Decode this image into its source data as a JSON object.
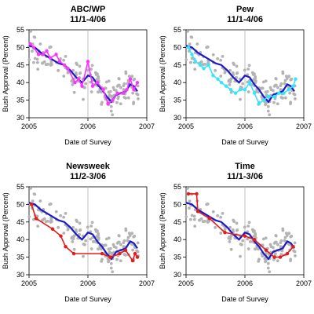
{
  "colors": {
    "scatter": "#b3b3b3",
    "trend": "#1a1acc",
    "vline": "#bfbfbf",
    "abc": "#ff33ff",
    "pew": "#33e6ff",
    "newsweek": "#e61a1a",
    "time": "#e61a1a"
  },
  "chart_data": [
    {
      "type": "line",
      "title": "ABC/WP",
      "subtitle": "11/1-4/06",
      "xlabel": "Date of Survey",
      "ylabel": "Bush Approval (Percent)",
      "xlim": [
        2005,
        2007
      ],
      "ylim": [
        30,
        55
      ],
      "xticks": [
        "2005",
        "2006",
        "2007"
      ],
      "yticks": [
        "30",
        "35",
        "40",
        "45",
        "50",
        "55"
      ],
      "grid": false,
      "reference_line_x": 2006,
      "series": [
        {
          "role": "poll",
          "color_key": "abc",
          "x": [
            2005.02,
            2005.08,
            2005.16,
            2005.24,
            2005.3,
            2005.36,
            2005.46,
            2005.52,
            2005.6,
            2005.66,
            2005.78,
            2005.84,
            2005.9,
            2006.0,
            2006.08,
            2006.16,
            2006.26,
            2006.34,
            2006.42,
            2006.5,
            2006.6,
            2006.66,
            2006.72,
            2006.78,
            2006.84
          ],
          "y": [
            51,
            50,
            48,
            48,
            49,
            47,
            48,
            46,
            45,
            44,
            40,
            41,
            39,
            46,
            39,
            40,
            38,
            34,
            35,
            37,
            37,
            38,
            41,
            38,
            40
          ]
        },
        {
          "role": "trend",
          "color_key": "trend",
          "x": [
            2005.0,
            2005.1,
            2005.2,
            2005.3,
            2005.4,
            2005.5,
            2005.6,
            2005.7,
            2005.8,
            2005.9,
            2006.0,
            2006.08,
            2006.16,
            2006.24,
            2006.32,
            2006.4,
            2006.48,
            2006.56,
            2006.64,
            2006.72,
            2006.78,
            2006.84
          ],
          "y": [
            50.5,
            50,
            48.5,
            47.5,
            46.5,
            45.5,
            45,
            43.5,
            41.5,
            40,
            42,
            41.5,
            39.5,
            38,
            36,
            34.5,
            36.5,
            37,
            37.5,
            39.5,
            39,
            37.5
          ]
        }
      ]
    },
    {
      "type": "line",
      "title": "Pew",
      "subtitle": "11/1-4/06",
      "xlabel": "Date of Survey",
      "ylabel": "Bush Approval (Percent)",
      "xlim": [
        2005,
        2007
      ],
      "ylim": [
        30,
        55
      ],
      "xticks": [
        "2005",
        "2006",
        "2007"
      ],
      "yticks": [
        "30",
        "35",
        "40",
        "45",
        "50",
        "55"
      ],
      "grid": false,
      "reference_line_x": 2006,
      "series": [
        {
          "role": "poll",
          "color_key": "pew",
          "x": [
            2005.04,
            2005.1,
            2005.16,
            2005.24,
            2005.3,
            2005.38,
            2005.46,
            2005.54,
            2005.6,
            2005.68,
            2005.76,
            2005.84,
            2005.92,
            2006.0,
            2006.08,
            2006.16,
            2006.24,
            2006.32,
            2006.4,
            2006.5,
            2006.58,
            2006.66,
            2006.74,
            2006.82,
            2006.86
          ],
          "y": [
            50,
            48,
            46,
            45,
            44,
            45,
            42,
            41,
            40,
            39,
            38,
            37,
            38,
            38,
            40,
            37,
            34,
            35,
            36,
            36,
            37,
            37,
            38,
            39,
            41
          ]
        },
        {
          "role": "trend",
          "color_key": "trend",
          "x": [
            2005.0,
            2005.1,
            2005.2,
            2005.3,
            2005.4,
            2005.5,
            2005.6,
            2005.7,
            2005.8,
            2005.9,
            2006.0,
            2006.08,
            2006.16,
            2006.24,
            2006.32,
            2006.4,
            2006.48,
            2006.56,
            2006.64,
            2006.72,
            2006.78,
            2006.84
          ],
          "y": [
            50.5,
            50,
            48.5,
            47.5,
            46.5,
            45.5,
            45,
            43.5,
            41.5,
            40,
            42,
            41.5,
            39.5,
            38,
            36,
            34.5,
            36.5,
            37,
            37.5,
            39.5,
            39,
            37.5
          ]
        }
      ]
    },
    {
      "type": "line",
      "title": "Newsweek",
      "subtitle": "11/2-3/06",
      "xlabel": "Date of Survey",
      "ylabel": "Bush Approval (Percent)",
      "xlim": [
        2005,
        2007
      ],
      "ylim": [
        30,
        55
      ],
      "xticks": [
        "2005",
        "2006",
        "2007"
      ],
      "yticks": [
        "30",
        "35",
        "40",
        "45",
        "50",
        "55"
      ],
      "grid": false,
      "reference_line_x": 2006,
      "series": [
        {
          "role": "poll",
          "color_key": "newsweek",
          "x": [
            2005.04,
            2005.12,
            2005.4,
            2005.54,
            2005.62,
            2005.76,
            2006.24,
            2006.38,
            2006.54,
            2006.64,
            2006.76,
            2006.8,
            2006.84
          ],
          "y": [
            50,
            46,
            43,
            41,
            38,
            36,
            36,
            35,
            36,
            37,
            34,
            36,
            35
          ]
        },
        {
          "role": "trend",
          "color_key": "trend",
          "x": [
            2005.0,
            2005.1,
            2005.2,
            2005.3,
            2005.4,
            2005.5,
            2005.6,
            2005.7,
            2005.8,
            2005.9,
            2006.0,
            2006.08,
            2006.16,
            2006.24,
            2006.32,
            2006.4,
            2006.48,
            2006.56,
            2006.64,
            2006.72,
            2006.78,
            2006.84
          ],
          "y": [
            50.5,
            50,
            48.5,
            47.5,
            46.5,
            45.5,
            45,
            43.5,
            41.5,
            40,
            42,
            41.5,
            39.5,
            38,
            36,
            34.5,
            36.5,
            37,
            37.5,
            39.5,
            39,
            37.5
          ]
        }
      ]
    },
    {
      "type": "line",
      "title": "Time",
      "subtitle": "11/1-3/06",
      "xlabel": "Date of Survey",
      "ylabel": "Bush Approval (Percent)",
      "xlim": [
        2005,
        2007
      ],
      "ylim": [
        30,
        55
      ],
      "xticks": [
        "2005",
        "2006",
        "2007"
      ],
      "yticks": [
        "30",
        "35",
        "40",
        "45",
        "50",
        "55"
      ],
      "grid": false,
      "reference_line_x": 2006,
      "series": [
        {
          "role": "poll",
          "color_key": "time",
          "x": [
            2005.04,
            2005.18,
            2005.2,
            2005.4,
            2005.66,
            2006.0,
            2006.16,
            2006.36,
            2006.5,
            2006.6,
            2006.72,
            2006.82
          ],
          "y": [
            53,
            53,
            48,
            46,
            42,
            41,
            40,
            37,
            35,
            35,
            36,
            38
          ]
        },
        {
          "role": "trend",
          "color_key": "trend",
          "x": [
            2005.0,
            2005.1,
            2005.2,
            2005.3,
            2005.4,
            2005.5,
            2005.6,
            2005.7,
            2005.8,
            2005.9,
            2006.0,
            2006.08,
            2006.16,
            2006.24,
            2006.32,
            2006.4,
            2006.48,
            2006.56,
            2006.64,
            2006.72,
            2006.78,
            2006.84
          ],
          "y": [
            50.5,
            50,
            48.5,
            47.5,
            46.5,
            45.5,
            45,
            43.5,
            41.5,
            40,
            42,
            41.5,
            39.5,
            38,
            36,
            34.5,
            36.5,
            37,
            37.5,
            39.5,
            39,
            37.5
          ]
        }
      ]
    }
  ]
}
